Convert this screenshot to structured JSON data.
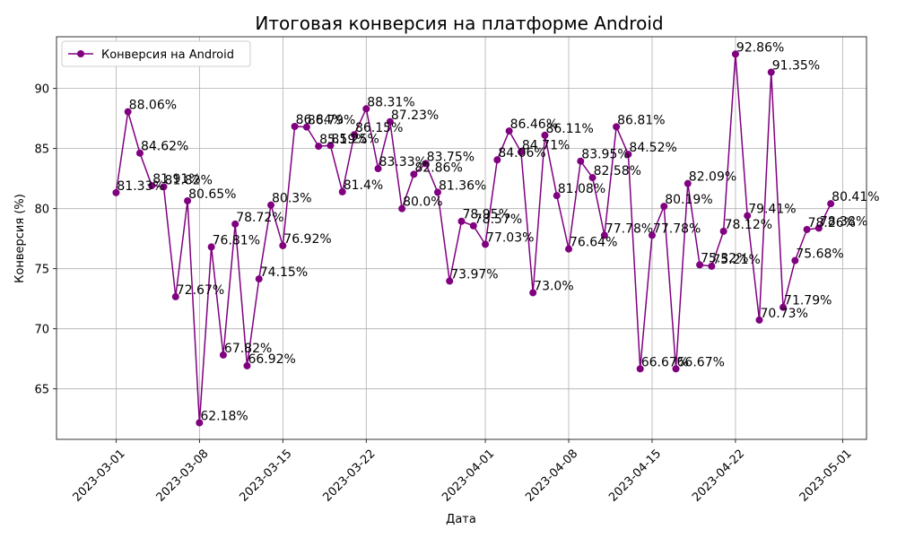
{
  "chart_data": {
    "type": "line",
    "title": "Итоговая конверсия на платформе Android",
    "xlabel": "Дата",
    "ylabel": "Конверсия (%)",
    "grid": true,
    "legend_placement": "top-left",
    "x_ticks": [
      "2023-03-01",
      "2023-03-08",
      "2023-03-15",
      "2023-03-22",
      "2023-04-01",
      "2023-04-08",
      "2023-04-15",
      "2023-04-22",
      "2023-05-01"
    ],
    "y_ticks": [
      65,
      70,
      75,
      80,
      85,
      90
    ],
    "xlim": [
      "2023-02-24",
      "2023-05-03"
    ],
    "ylim": [
      60.8,
      94.3
    ],
    "series": [
      {
        "name": "Конверсия на Android",
        "color": "#800080",
        "x": [
          "2023-03-01",
          "2023-03-02",
          "2023-03-03",
          "2023-03-04",
          "2023-03-05",
          "2023-03-06",
          "2023-03-07",
          "2023-03-08",
          "2023-03-09",
          "2023-03-10",
          "2023-03-11",
          "2023-03-12",
          "2023-03-13",
          "2023-03-14",
          "2023-03-15",
          "2023-03-16",
          "2023-03-17",
          "2023-03-18",
          "2023-03-19",
          "2023-03-20",
          "2023-03-21",
          "2023-03-22",
          "2023-03-23",
          "2023-03-24",
          "2023-03-25",
          "2023-03-26",
          "2023-03-27",
          "2023-03-28",
          "2023-03-29",
          "2023-03-30",
          "2023-03-31",
          "2023-04-01",
          "2023-04-02",
          "2023-04-03",
          "2023-04-04",
          "2023-04-05",
          "2023-04-06",
          "2023-04-07",
          "2023-04-08",
          "2023-04-09",
          "2023-04-10",
          "2023-04-11",
          "2023-04-12",
          "2023-04-13",
          "2023-04-14",
          "2023-04-15",
          "2023-04-16",
          "2023-04-17",
          "2023-04-18",
          "2023-04-19",
          "2023-04-20",
          "2023-04-21",
          "2023-04-22",
          "2023-04-23",
          "2023-04-24",
          "2023-04-25",
          "2023-04-26",
          "2023-04-27",
          "2023-04-28",
          "2023-04-29",
          "2023-04-30"
        ],
        "values": [
          81.33,
          88.06,
          84.62,
          81.91,
          81.82,
          72.67,
          80.65,
          62.18,
          76.81,
          67.82,
          78.72,
          66.92,
          74.15,
          80.3,
          76.92,
          86.84,
          86.79,
          85.19,
          85.25,
          81.4,
          86.15,
          88.31,
          83.33,
          87.23,
          80.0,
          82.86,
          83.75,
          81.36,
          73.97,
          78.95,
          78.57,
          77.03,
          84.06,
          86.46,
          84.71,
          73.0,
          86.11,
          81.08,
          76.64,
          83.95,
          82.58,
          77.78,
          86.81,
          84.52,
          66.67,
          77.78,
          80.19,
          66.67,
          82.09,
          75.32,
          75.21,
          78.12,
          92.86,
          79.41,
          70.73,
          91.35,
          71.79,
          75.68,
          78.26,
          78.38,
          80.41
        ],
        "labels": [
          "81.33%",
          "88.06%",
          "84.62%",
          "81.91%",
          "81.82%",
          "72.67%",
          "80.65%",
          "62.18%",
          "76.81%",
          "67.82%",
          "78.72%",
          "66.92%",
          "74.15%",
          "80.3%",
          "76.92%",
          "86.84%",
          "86.79%",
          "85.19%",
          "85.25%",
          "81.4%",
          "86.15%",
          "88.31%",
          "83.33%",
          "87.23%",
          "80.0%",
          "82.86%",
          "83.75%",
          "81.36%",
          "73.97%",
          "78.95%",
          "78.57%",
          "77.03%",
          "84.06%",
          "86.46%",
          "84.71%",
          "73.0%",
          "86.11%",
          "81.08%",
          "76.64%",
          "83.95%",
          "82.58%",
          "77.78%",
          "86.81%",
          "84.52%",
          "66.67%",
          "77.78%",
          "80.19%",
          "66.67%",
          "82.09%",
          "75.32%",
          "75.21%",
          "78.12%",
          "92.86%",
          "79.41%",
          "70.73%",
          "91.35%",
          "71.79%",
          "75.68%",
          "78.26%",
          "78.38%",
          "80.41%"
        ]
      }
    ]
  }
}
